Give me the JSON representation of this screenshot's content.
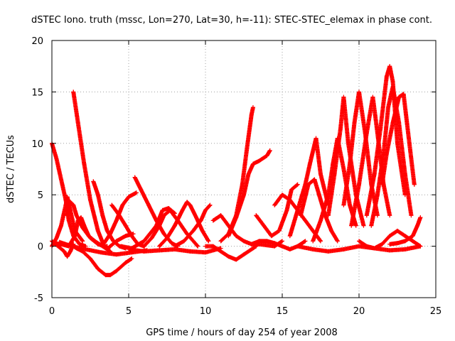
{
  "chart_data": {
    "type": "scatter",
    "title": "dSTEC Iono. truth (mssc, Lon=270, Lat=30, h=-11): STEC-STEC_elemax in phase cont.",
    "xlabel": "GPS time / hours of day 254 of year 2008",
    "ylabel": "dSTEC  / TECUs",
    "xlim": [
      0,
      25
    ],
    "ylim": [
      -5,
      20
    ],
    "xticks": [
      0,
      5,
      10,
      15,
      20,
      25
    ],
    "yticks": [
      -5,
      0,
      5,
      10,
      15,
      20
    ],
    "grid": true,
    "marker": "+",
    "color": "#ff0000",
    "series": [
      {
        "x": [
          0.0,
          0.3,
          0.6,
          0.9,
          1.1,
          1.4,
          1.8,
          2.2
        ],
        "y": [
          10.0,
          8.5,
          6.5,
          4.5,
          2.5,
          1.0,
          0.2,
          0.0
        ]
      },
      {
        "x": [
          0.0,
          0.3,
          0.6,
          0.9,
          1.0,
          1.2,
          1.5,
          2.0
        ],
        "y": [
          0.0,
          0.8,
          2.0,
          4.0,
          4.8,
          3.5,
          1.5,
          0.5
        ]
      },
      {
        "x": [
          0.1,
          0.6,
          1.1,
          1.5,
          1.7,
          1.9,
          2.1,
          2.4,
          2.8,
          3.3,
          3.8
        ],
        "y": [
          0.3,
          0.2,
          0.0,
          1.0,
          2.5,
          2.8,
          2.0,
          1.0,
          0.5,
          0.0,
          -0.5
        ]
      },
      {
        "x": [
          0.0,
          0.4,
          0.8,
          1.0,
          1.2,
          1.4
        ],
        "y": [
          0.5,
          0.0,
          -0.5,
          -1.0,
          -0.5,
          0.2
        ]
      },
      {
        "x": [
          1.0,
          1.2,
          1.4,
          1.6,
          2.0,
          2.5,
          3.0,
          3.4,
          3.6
        ],
        "y": [
          3.0,
          4.3,
          4.0,
          3.0,
          1.8,
          0.8,
          0.2,
          0.0,
          0.0
        ]
      },
      {
        "x": [
          1.4,
          1.7,
          2.1,
          2.5,
          3.0,
          3.4,
          3.6,
          3.8,
          4.2,
          4.8,
          5.3
        ],
        "y": [
          15.0,
          12.0,
          8.0,
          4.5,
          1.5,
          0.0,
          -0.3,
          0.0,
          0.5,
          1.0,
          1.2
        ]
      },
      {
        "x": [
          1.2,
          1.6,
          2.0,
          2.5,
          3.0,
          3.5,
          3.8,
          4.2,
          4.8,
          5.2
        ],
        "y": [
          0.2,
          -0.2,
          -0.5,
          -1.2,
          -2.2,
          -2.8,
          -2.8,
          -2.4,
          -1.6,
          -1.2
        ]
      },
      {
        "x": [
          0.5,
          1.3,
          2.2,
          3.2,
          4.2,
          5.2,
          6.2
        ],
        "y": [
          0.4,
          0.0,
          -0.3,
          -0.6,
          -0.8,
          -0.6,
          -0.4
        ]
      },
      {
        "x": [
          2.7,
          3.0,
          3.3,
          3.6,
          4.0,
          4.4,
          4.8
        ],
        "y": [
          6.3,
          5.0,
          3.0,
          1.5,
          0.5,
          0.0,
          -0.2
        ]
      },
      {
        "x": [
          3.4,
          3.8,
          4.2,
          4.6,
          5.0,
          5.5
        ],
        "y": [
          0.3,
          1.2,
          2.5,
          4.0,
          4.8,
          5.2
        ]
      },
      {
        "x": [
          3.9,
          4.3,
          4.8,
          5.2,
          5.6,
          6.0
        ],
        "y": [
          4.0,
          3.2,
          2.0,
          1.0,
          0.2,
          0.0
        ]
      },
      {
        "x": [
          5.4,
          5.8,
          6.3,
          6.8,
          7.3,
          7.8,
          8.2
        ],
        "y": [
          6.7,
          5.5,
          4.0,
          2.5,
          1.2,
          0.3,
          0.0
        ]
      },
      {
        "x": [
          4.5,
          5.2,
          6.0,
          6.8,
          7.2,
          7.6,
          8.0
        ],
        "y": [
          0.0,
          -0.2,
          0.5,
          2.0,
          3.5,
          3.7,
          3.2
        ]
      },
      {
        "x": [
          5.0,
          6.0,
          7.0,
          8.0,
          9.0,
          10.0,
          11.0
        ],
        "y": [
          -0.3,
          -0.5,
          -0.4,
          -0.3,
          -0.5,
          -0.6,
          -0.2
        ]
      },
      {
        "x": [
          6.0,
          6.5,
          7.0,
          7.3,
          7.7,
          8.2,
          8.8,
          9.5
        ],
        "y": [
          0.0,
          0.8,
          2.0,
          3.0,
          3.5,
          2.5,
          1.2,
          0.0
        ]
      },
      {
        "x": [
          7.0,
          7.5,
          8.0,
          8.5,
          8.8,
          9.0,
          9.4,
          9.8,
          10.2
        ],
        "y": [
          0.0,
          0.8,
          2.0,
          3.5,
          4.3,
          4.0,
          2.8,
          1.5,
          0.5
        ]
      },
      {
        "x": [
          8.0,
          8.6,
          9.2,
          9.7,
          10.0,
          10.3
        ],
        "y": [
          0.0,
          0.5,
          1.5,
          2.5,
          3.5,
          4.0
        ]
      },
      {
        "x": [
          10.0,
          10.5,
          11.0,
          11.5,
          12.0,
          12.5,
          13.0,
          13.3
        ],
        "y": [
          0.0,
          0.0,
          -0.5,
          -1.0,
          -1.3,
          -0.8,
          -0.3,
          0.0
        ]
      },
      {
        "x": [
          11.0,
          11.5,
          12.0,
          12.4,
          12.7,
          13.0,
          13.1
        ],
        "y": [
          0.5,
          1.2,
          3.0,
          6.0,
          9.5,
          12.8,
          13.5
        ]
      },
      {
        "x": [
          11.5,
          12.0,
          12.5,
          12.8,
          13.1,
          13.5,
          14.0,
          14.2
        ],
        "y": [
          1.0,
          2.8,
          5.0,
          7.0,
          8.0,
          8.3,
          8.8,
          9.3
        ]
      },
      {
        "x": [
          10.5,
          11.0,
          11.5,
          12.0,
          12.5,
          13.0,
          13.5,
          14.5,
          15.0
        ],
        "y": [
          2.5,
          3.0,
          2.0,
          1.0,
          0.5,
          0.2,
          0.2,
          0.0,
          0.5
        ]
      },
      {
        "x": [
          13.0,
          13.5,
          14.0,
          14.5,
          15.0,
          15.5,
          16.0,
          16.5
        ],
        "y": [
          0.2,
          0.5,
          0.5,
          0.3,
          0.0,
          -0.3,
          0.0,
          0.5
        ]
      },
      {
        "x": [
          13.3,
          13.8,
          14.3,
          14.8,
          15.3,
          15.6,
          16.0
        ],
        "y": [
          3.0,
          2.0,
          1.0,
          1.5,
          3.5,
          5.5,
          6.0
        ]
      },
      {
        "x": [
          14.5,
          15.0,
          15.5,
          16.0,
          16.5,
          17.0,
          17.5
        ],
        "y": [
          4.0,
          5.0,
          4.5,
          3.5,
          2.5,
          1.5,
          0.5
        ]
      },
      {
        "x": [
          15.5,
          16.0,
          16.5,
          16.8,
          17.2,
          17.5,
          18.0
        ],
        "y": [
          1.0,
          3.5,
          6.0,
          8.0,
          10.5,
          7.0,
          4.0
        ]
      },
      {
        "x": [
          16.2,
          16.7,
          17.1,
          17.4,
          17.8,
          18.2,
          18.6
        ],
        "y": [
          3.0,
          6.0,
          6.5,
          5.0,
          3.0,
          1.5,
          0.5
        ]
      },
      {
        "x": [
          17.0,
          17.5,
          18.0,
          18.3,
          18.6,
          19.0,
          19.4,
          19.8
        ],
        "y": [
          0.5,
          2.5,
          5.0,
          8.0,
          10.5,
          7.5,
          4.0,
          2.0
        ]
      },
      {
        "x": [
          18.0,
          18.4,
          18.8,
          19.0,
          19.3,
          19.8,
          20.3
        ],
        "y": [
          3.0,
          7.0,
          11.5,
          14.5,
          10.0,
          5.0,
          2.0
        ]
      },
      {
        "x": [
          19.0,
          19.4,
          19.7,
          20.0,
          20.4,
          20.8,
          21.2
        ],
        "y": [
          4.0,
          8.0,
          12.0,
          15.0,
          11.0,
          6.0,
          3.0
        ]
      },
      {
        "x": [
          19.5,
          20.0,
          20.5,
          20.9,
          21.2,
          21.6,
          22.0
        ],
        "y": [
          2.0,
          6.0,
          11.0,
          14.5,
          11.0,
          6.0,
          3.0
        ]
      },
      {
        "x": [
          20.5,
          21.0,
          21.4,
          21.8,
          22.0,
          22.2,
          22.5,
          23.0
        ],
        "y": [
          3.0,
          7.0,
          11.5,
          16.5,
          17.5,
          16.0,
          10.0,
          5.0
        ]
      },
      {
        "x": [
          20.8,
          21.2,
          21.6,
          21.9,
          22.2,
          22.6,
          23.0,
          23.4
        ],
        "y": [
          2.0,
          5.0,
          9.0,
          13.5,
          15.5,
          12.0,
          7.0,
          3.0
        ]
      },
      {
        "x": [
          21.5,
          21.8,
          22.2,
          22.6,
          22.9,
          23.2,
          23.6
        ],
        "y": [
          6.0,
          9.0,
          12.0,
          14.5,
          14.8,
          11.0,
          6.0
        ]
      },
      {
        "x": [
          16.0,
          17.0,
          18.0,
          19.0,
          20.0,
          21.0,
          22.0,
          23.0,
          24.0
        ],
        "y": [
          0.0,
          -0.3,
          -0.5,
          -0.3,
          0.0,
          -0.2,
          -0.4,
          -0.3,
          0.0
        ]
      },
      {
        "x": [
          20.0,
          20.5,
          21.0,
          21.5,
          22.0,
          22.5,
          23.0,
          23.5,
          24.0
        ],
        "y": [
          0.5,
          0.0,
          -0.2,
          0.2,
          1.0,
          1.5,
          1.0,
          0.5,
          0.0
        ]
      },
      {
        "x": [
          22.0,
          22.5,
          23.0,
          23.5,
          23.8,
          24.0
        ],
        "y": [
          0.2,
          0.3,
          0.5,
          1.0,
          2.0,
          2.8
        ]
      }
    ]
  }
}
